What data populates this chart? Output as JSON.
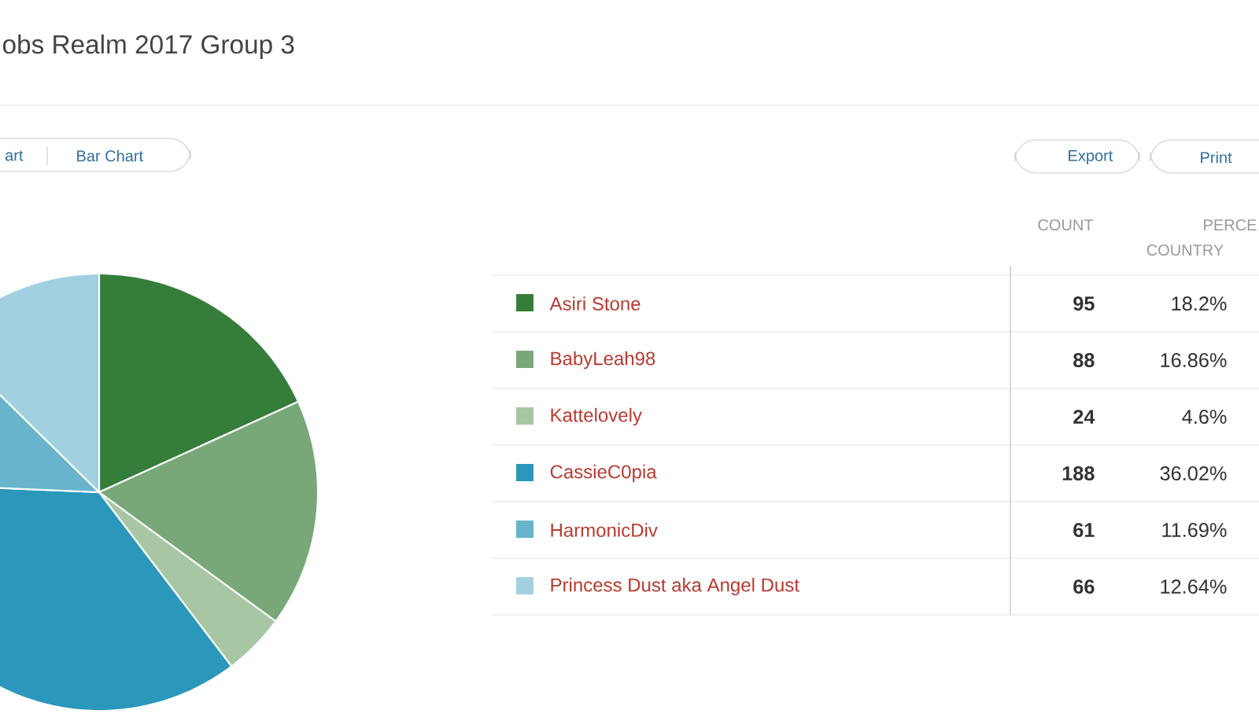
{
  "chart_data": {
    "type": "pie",
    "title": "obs Realm 2017 Group 3",
    "categories": [
      "Asiri Stone",
      "BabyLeah98",
      "Kattelovely",
      "CassieC0pia",
      "HarmonicDiv",
      "Princess Dust aka Angel Dust"
    ],
    "values": [
      18.2,
      16.86,
      4.6,
      36.02,
      11.69,
      12.64
    ],
    "colors": [
      "#357e3a",
      "#78a878",
      "#a6c6a4",
      "#2b97bb",
      "#67b4cc",
      "#a1d1e1"
    ],
    "value_labels": [
      "18.2%",
      "16.86%",
      "4.6%",
      "36.02%",
      "11.69%",
      "12.64%"
    ],
    "legend": "right",
    "annotations": [
      "art",
      "Bar Chart",
      "Export",
      "Print",
      "COUNT",
      "PERCE",
      "COUNTRY",
      "95",
      "88",
      "24",
      "188",
      "61",
      "66"
    ]
  }
}
